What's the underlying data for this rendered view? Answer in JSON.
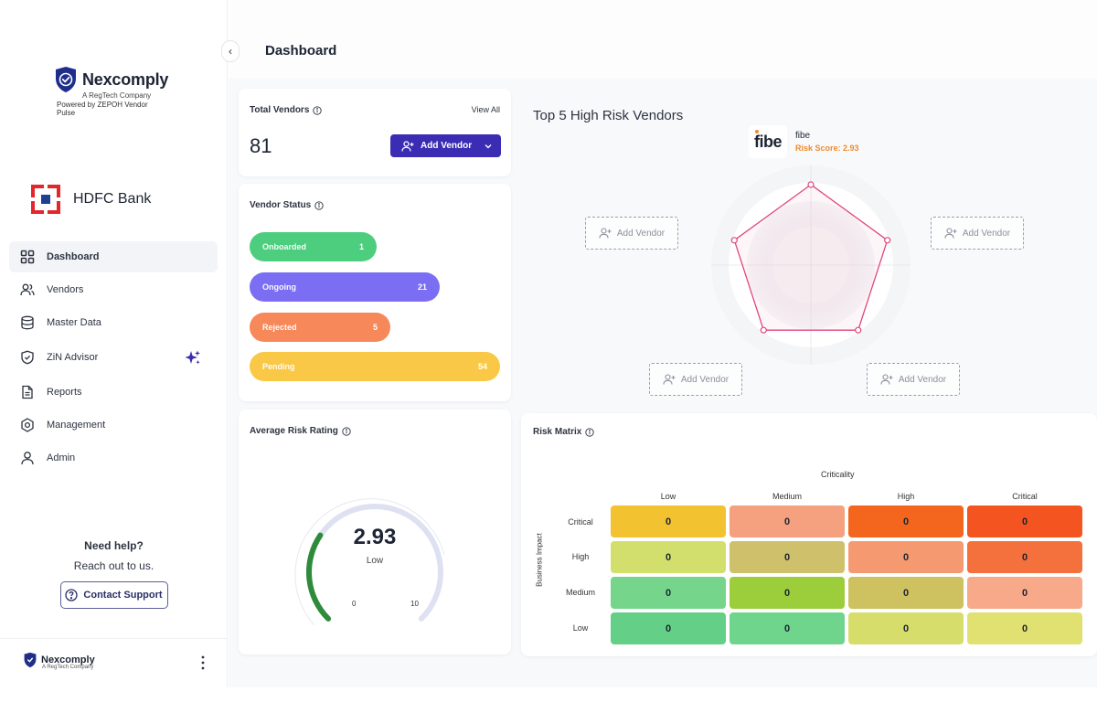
{
  "sidebar": {
    "brand": {
      "name": "Nexcomply",
      "tagline": "A RegTech Company",
      "powered_by": "Powered by ZEPOH Vendor Pulse"
    },
    "bank": {
      "name": "HDFC Bank"
    },
    "nav": [
      {
        "label": "Dashboard",
        "icon": "grid-icon",
        "active": true
      },
      {
        "label": "Vendors",
        "icon": "users-icon"
      },
      {
        "label": "Master Data",
        "icon": "database-icon"
      },
      {
        "label": "ZiN Advisor",
        "icon": "shield-check-icon"
      },
      {
        "label": "Reports",
        "icon": "file-icon"
      },
      {
        "label": "Management",
        "icon": "settings-icon"
      },
      {
        "label": "Admin",
        "icon": "user-icon"
      }
    ],
    "help": {
      "title": "Need help?",
      "subtitle": "Reach out to us.",
      "button": "Contact Support"
    },
    "footer": {
      "name": "Nexcomply",
      "tagline": "A RegTech Company"
    }
  },
  "header": {
    "title": "Dashboard",
    "collapse_glyph": "‹"
  },
  "total_vendors": {
    "title": "Total Vendors",
    "view_all": "View All",
    "count": "81",
    "add_button": "Add Vendor"
  },
  "vendor_status": {
    "title": "Vendor Status",
    "items": [
      {
        "label": "Onboarded",
        "count": "1",
        "color": "#4cce7e",
        "fraction": 0.508
      },
      {
        "label": "Ongoing",
        "count": "21",
        "color": "#7b6ef2",
        "fraction": 0.758
      },
      {
        "label": "Rejected",
        "count": "5",
        "color": "#f6885a",
        "fraction": 0.561
      },
      {
        "label": "Pending",
        "count": "54",
        "color": "#f9c846",
        "fraction": 1.0
      }
    ]
  },
  "avg_risk": {
    "title": "Average Risk Rating",
    "value": "2.93",
    "label": "Low",
    "min": "0",
    "max": "10",
    "fraction": 0.293,
    "color": "#2e8b3a"
  },
  "top5": {
    "title": "Top 5 High Risk Vendors",
    "vendor": {
      "logo": "fibe",
      "name": "fibe",
      "score_label": "Risk Score: 2.93"
    },
    "placeholder_label": "Add Vendor",
    "line_color": "#e0457b"
  },
  "risk_matrix": {
    "title": "Risk Matrix",
    "x_axis": "Criticality",
    "y_axis": "Business Impact",
    "columns": [
      "Low",
      "Medium",
      "High",
      "Critical"
    ],
    "rows": [
      {
        "label": "Critical",
        "values": [
          "0",
          "0",
          "0",
          "0"
        ],
        "colors": [
          "#f2c230",
          "#f5a07e",
          "#f4661e",
          "#f4541f"
        ]
      },
      {
        "label": "High",
        "values": [
          "0",
          "0",
          "0",
          "0"
        ],
        "colors": [
          "#d3df6c",
          "#cfc16b",
          "#f59a70",
          "#f4703d"
        ]
      },
      {
        "label": "Medium",
        "values": [
          "0",
          "0",
          "0",
          "0"
        ],
        "colors": [
          "#74d58b",
          "#9cce3c",
          "#cec160",
          "#f7a98a"
        ]
      },
      {
        "label": "Low",
        "values": [
          "0",
          "0",
          "0",
          "0"
        ],
        "colors": [
          "#64cf87",
          "#6fd48c",
          "#d6dd6a",
          "#e1e171"
        ]
      }
    ]
  }
}
